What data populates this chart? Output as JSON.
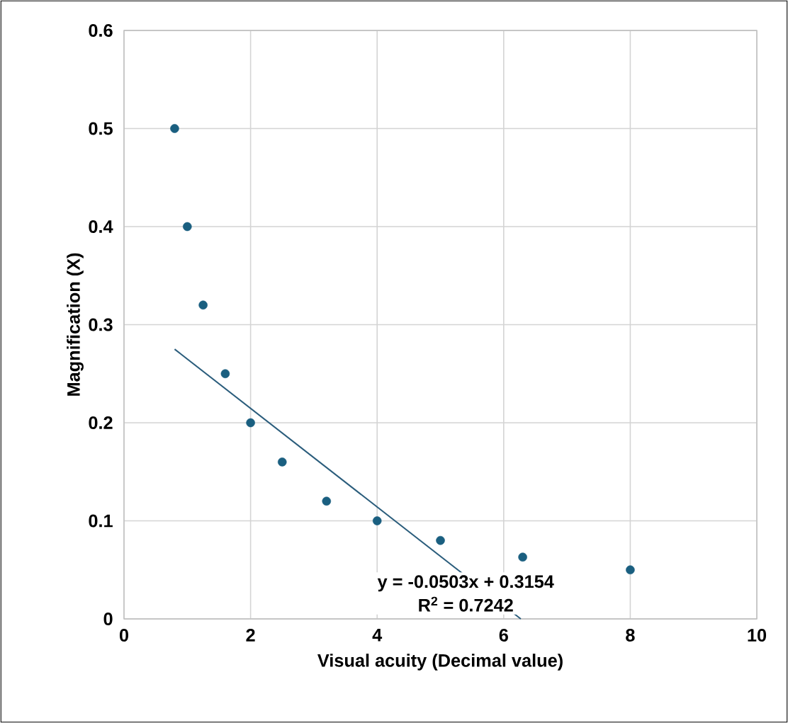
{
  "chart_data": {
    "type": "scatter",
    "xlabel": "Visual acuity (Decimal value)",
    "ylabel": "Magnification (X)",
    "x": [
      0.8,
      1.0,
      1.25,
      1.6,
      2.0,
      2.5,
      3.2,
      4.0,
      5.0,
      6.3,
      8.0
    ],
    "series": [
      {
        "marker": "circle",
        "color": "#1a5f80",
        "values": [
          0.5,
          0.4,
          0.32,
          0.25,
          0.2,
          0.16,
          0.12,
          0.1,
          0.08,
          0.063,
          0.05
        ]
      },
      {
        "type": "line",
        "marker": "none",
        "color": "#2b5d7c",
        "x": [
          0.8,
          6.27
        ],
        "values": [
          0.275,
          0
        ]
      }
    ],
    "annotations": [
      "y = -0.0503x + 0.3154",
      "R$^{2}$ = 0.7242"
    ],
    "xlim": [
      0,
      10
    ],
    "ylim": [
      0,
      0.6
    ],
    "xticks": [
      0,
      2,
      4,
      6,
      8,
      10
    ],
    "yticks": [
      0,
      0.1,
      0.2,
      0.3,
      0.4,
      0.5,
      0.6
    ],
    "grid": true
  }
}
